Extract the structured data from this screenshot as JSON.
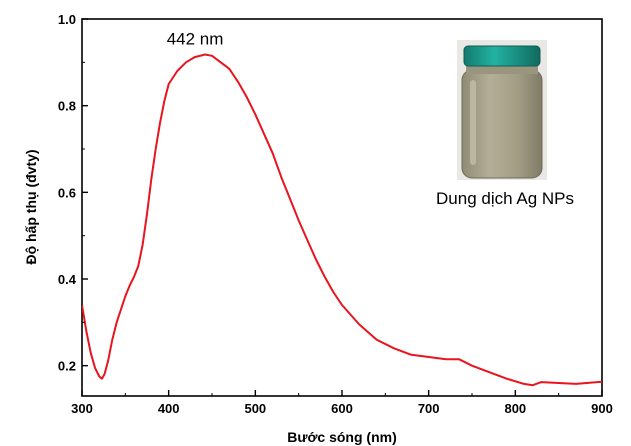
{
  "chart_data": {
    "type": "line",
    "xlabel": "Bước sóng (nm)",
    "ylabel": "Độ hấp thụ (đvty)",
    "xlim": [
      300,
      900
    ],
    "ylim": [
      0.13,
      1.0
    ],
    "x_ticks": [
      300,
      400,
      500,
      600,
      700,
      800,
      900
    ],
    "y_ticks": [
      0.2,
      0.4,
      0.6,
      0.8,
      1.0
    ],
    "x_tick_labels": [
      "300",
      "400",
      "500",
      "600",
      "700",
      "800",
      "900"
    ],
    "y_tick_labels": [
      "0.2",
      "0.4",
      "0.6",
      "0.8",
      "1.0"
    ],
    "grid": false,
    "series": [
      {
        "color": "#e8141e",
        "x": [
          300,
          305,
          310,
          315,
          320,
          323,
          326,
          330,
          335,
          340,
          345,
          350,
          355,
          360,
          365,
          370,
          375,
          380,
          385,
          390,
          395,
          400,
          410,
          420,
          430,
          442,
          450,
          460,
          470,
          480,
          490,
          500,
          510,
          520,
          530,
          540,
          550,
          560,
          570,
          580,
          590,
          600,
          620,
          640,
          660,
          680,
          700,
          720,
          735,
          750,
          770,
          790,
          810,
          820,
          830,
          850,
          870,
          900
        ],
        "y": [
          0.34,
          0.28,
          0.23,
          0.195,
          0.175,
          0.17,
          0.18,
          0.21,
          0.26,
          0.3,
          0.33,
          0.36,
          0.385,
          0.405,
          0.43,
          0.48,
          0.55,
          0.63,
          0.7,
          0.76,
          0.81,
          0.85,
          0.88,
          0.9,
          0.912,
          0.918,
          0.915,
          0.9,
          0.885,
          0.855,
          0.82,
          0.78,
          0.735,
          0.69,
          0.635,
          0.585,
          0.535,
          0.49,
          0.445,
          0.405,
          0.37,
          0.34,
          0.295,
          0.26,
          0.24,
          0.225,
          0.22,
          0.215,
          0.215,
          0.2,
          0.185,
          0.17,
          0.158,
          0.155,
          0.162,
          0.16,
          0.158,
          0.163
        ]
      }
    ],
    "annotations": [
      {
        "text": "442 nm",
        "x": 442,
        "y": 0.918
      }
    ]
  },
  "inset": {
    "caption": "Dung dịch Ag NPs",
    "cap_color": "#1a9e8f",
    "liquid_color": "#a7a28a"
  }
}
